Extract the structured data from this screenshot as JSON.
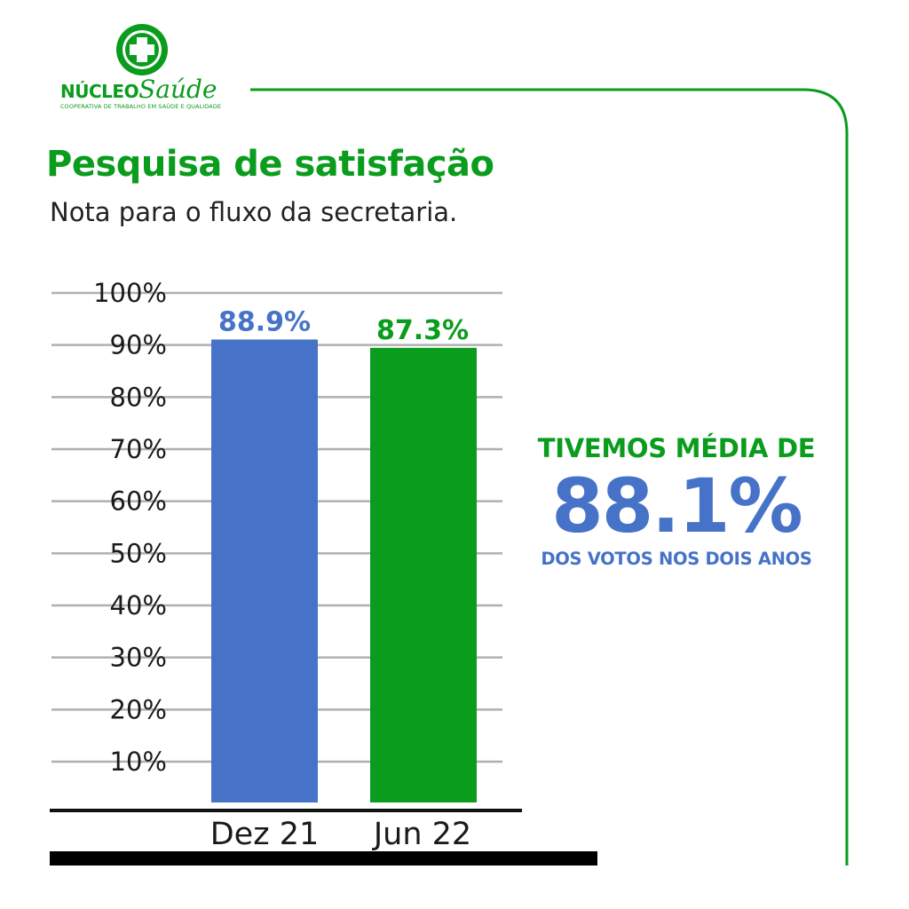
{
  "brand": {
    "name_part1": "NÚCLEO",
    "name_part2": "Saúde",
    "tagline": "COOPERATIVA DE TRABALHO EM SAÚDE E QUALIDADE",
    "color": "#0a9c1c",
    "icon": "medical-cross-icon"
  },
  "header": {
    "title": "Pesquisa de satisfação",
    "subtitle": "Nota para o fluxo da secretaria."
  },
  "callout": {
    "top": "TIVEMOS MÉDIA DE",
    "value": "88.1%",
    "bottom": "DOS VOTOS NOS DOIS ANOS"
  },
  "colors": {
    "green": "#0a9c1c",
    "blue": "#4673c8",
    "grid": "#b0b0b0",
    "axis": "#111111"
  },
  "chart_data": {
    "type": "bar",
    "categories": [
      "Dez 21",
      "Jun 22"
    ],
    "values": [
      88.9,
      87.3
    ],
    "value_labels": [
      "88.9%",
      "87.3%"
    ],
    "bar_colors": [
      "#4673c8",
      "#0a9c1c"
    ],
    "y_ticks": [
      "10%",
      "20%",
      "30%",
      "40%",
      "50%",
      "60%",
      "70%",
      "80%",
      "90%",
      "100%"
    ],
    "ylim": [
      0,
      100
    ],
    "grid": true,
    "legend": "none"
  }
}
